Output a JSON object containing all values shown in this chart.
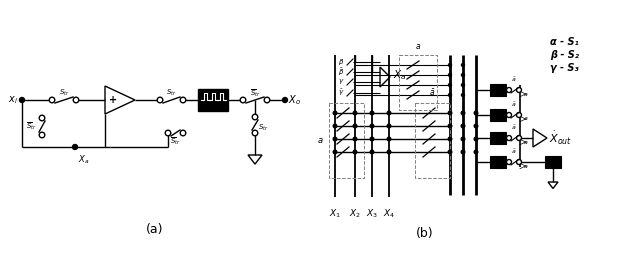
{
  "fig_width": 6.4,
  "fig_height": 2.59,
  "dpi": 100,
  "bg_color": "#ffffff",
  "line_color": "#000000",
  "label_a": "(a)",
  "label_b": "(b)",
  "legend_alpha": "α - S₁",
  "legend_beta": "β - S₂",
  "legend_gamma": "γ - S₃"
}
